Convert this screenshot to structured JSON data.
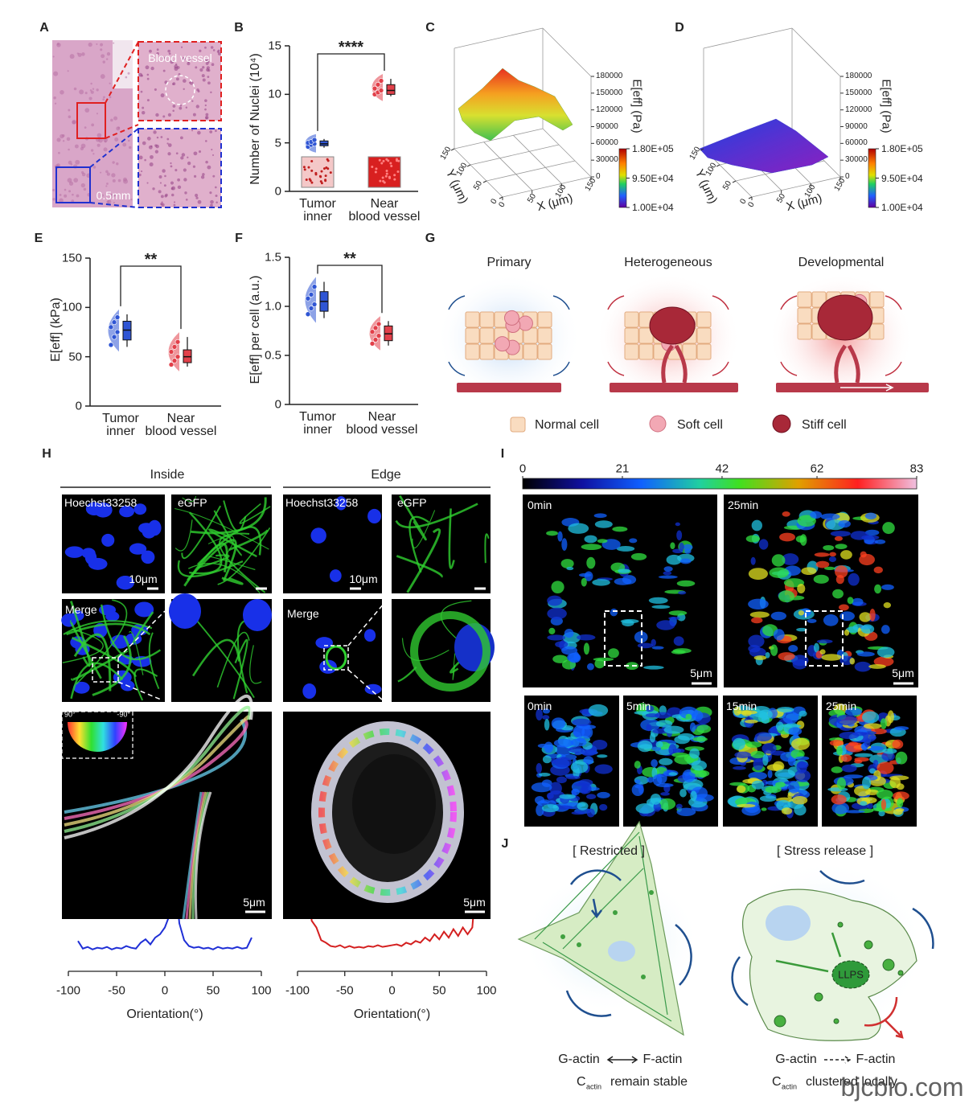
{
  "panels": {
    "A": {
      "label": "A",
      "vessel": "Blood vessel",
      "scale": "0.5mm"
    },
    "G": {
      "label": "G",
      "stages": [
        "Primary",
        "Heterogeneous",
        "Developmental"
      ],
      "legend": [
        "Normal cell",
        "Soft cell",
        "Stiff cell"
      ]
    },
    "H": {
      "label": "H",
      "groups": [
        "Inside",
        "Edge"
      ],
      "stains": [
        "Hoechst33258",
        "eGFP"
      ],
      "merge": "Merge",
      "scale_small": "10μm",
      "angle_max": "90°",
      "angle_min": "-90°",
      "scale_large": "5μm"
    },
    "I": {
      "label": "I",
      "times": [
        "0min",
        "5min",
        "15min",
        "25min"
      ],
      "scale": "5μm",
      "colorbar_lim": [
        0,
        83
      ],
      "colorbar_ticks": [
        0,
        21,
        42,
        62,
        83
      ]
    },
    "J": {
      "label": "J",
      "left": {
        "title": "[ Restricted ]",
        "from": "G-actin",
        "to": "F-actin",
        "c": "C",
        "sub": "actin",
        "state": "remain stable"
      },
      "right": {
        "title": "[ Stress release ]",
        "from": "G-actin",
        "to": "F-actin",
        "c": "C",
        "sub": "actin",
        "state": "clustered locally",
        "droplet": "LLPS"
      }
    }
  },
  "chart_data": [
    {
      "type": "box",
      "panel": "B",
      "ylabel": "Number of Nuclei (10⁴)",
      "categories": [
        "Tumor\ninner",
        "Near\nblood vessel"
      ],
      "colors": [
        "#2f55d4",
        "#e2404a"
      ],
      "ylim": [
        0,
        15
      ],
      "yticks": [
        0,
        5,
        10,
        15
      ],
      "significance": "****",
      "points": [
        [
          4.6,
          4.8,
          4.9,
          5.0,
          5.1,
          5.3
        ],
        [
          10.0,
          10.2,
          10.4,
          10.6,
          11.0,
          11.4
        ]
      ],
      "box": [
        {
          "min": 4.5,
          "q1": 4.7,
          "median": 4.9,
          "q3": 5.2,
          "max": 5.4
        },
        {
          "min": 9.8,
          "q1": 10.0,
          "median": 10.4,
          "q3": 11.0,
          "max": 11.6
        }
      ]
    },
    {
      "type": "surface",
      "panel": "C",
      "xlabel": "X (μm)",
      "ylabel": "Y (μm)",
      "zlabel": "E[eff] (Pa)",
      "xlim": [
        0,
        150
      ],
      "xticks": [
        0,
        50,
        100,
        150
      ],
      "ylim": [
        0,
        150
      ],
      "yticks": [
        0,
        50,
        100,
        150
      ],
      "zlim": [
        0,
        180000
      ],
      "zticks": [
        0,
        30000,
        60000,
        90000,
        120000,
        150000,
        180000
      ],
      "colorbar_lim": [
        10000,
        180000
      ],
      "colorbar_ticks": [
        {
          "value": 180000,
          "label": "1.80E+05"
        },
        {
          "value": 95000,
          "label": "9.50E+04"
        },
        {
          "value": 10000,
          "label": "1.00E+04"
        }
      ]
    },
    {
      "type": "surface",
      "panel": "D",
      "xlabel": "X (μm)",
      "ylabel": "Y (μm)",
      "zlabel": "E[eff] (Pa)",
      "xlim": [
        0,
        150
      ],
      "xticks": [
        0,
        50,
        100,
        150
      ],
      "ylim": [
        0,
        150
      ],
      "yticks": [
        0,
        50,
        100,
        150
      ],
      "zlim": [
        0,
        180000
      ],
      "zticks": [
        0,
        30000,
        60000,
        90000,
        120000,
        150000,
        180000
      ],
      "colorbar_lim": [
        10000,
        180000
      ],
      "colorbar_ticks": [
        {
          "value": 180000,
          "label": "1.80E+05"
        },
        {
          "value": 95000,
          "label": "9.50E+04"
        },
        {
          "value": 10000,
          "label": "1.00E+04"
        }
      ]
    },
    {
      "type": "box",
      "panel": "E",
      "ylabel": "E[eff] (kPa)",
      "categories": [
        "Tumor\ninner",
        "Near\nblood vessel"
      ],
      "colors": [
        "#2f55d4",
        "#e2404a"
      ],
      "ylim": [
        0,
        150
      ],
      "yticks": [
        0,
        50,
        100,
        150
      ],
      "significance": "**",
      "points": [
        [
          62,
          70,
          75,
          80,
          85,
          90
        ],
        [
          42,
          46,
          50,
          55,
          60,
          65
        ]
      ],
      "box": [
        {
          "min": 60,
          "q1": 67,
          "median": 77,
          "q3": 86,
          "max": 93
        },
        {
          "min": 40,
          "q1": 44,
          "median": 50,
          "q3": 57,
          "max": 70
        }
      ]
    },
    {
      "type": "box",
      "panel": "F",
      "ylabel": "E[eff] per cell (a.u.)",
      "categories": [
        "Tumor\ninner",
        "Near\nblood vessel"
      ],
      "colors": [
        "#2f55d4",
        "#e2404a"
      ],
      "ylim": [
        0,
        1.5
      ],
      "yticks": [
        0,
        0.5,
        {
          "value": 1,
          "label": "1.0"
        },
        1.5
      ],
      "significance": "**",
      "points": [
        [
          0.92,
          0.98,
          1.02,
          1.08,
          1.12,
          1.2
        ],
        [
          0.62,
          0.66,
          0.7,
          0.74,
          0.78,
          0.82
        ]
      ],
      "box": [
        {
          "min": 0.88,
          "q1": 0.95,
          "median": 1.05,
          "q3": 1.15,
          "max": 1.25
        },
        {
          "min": 0.6,
          "q1": 0.65,
          "median": 0.72,
          "q3": 0.8,
          "max": 0.85
        }
      ]
    },
    {
      "type": "line",
      "xlabel": "Orientation(°)",
      "xlim": [
        -100,
        100
      ],
      "xticks": [
        -100,
        -50,
        0,
        50,
        100
      ],
      "ylim": [
        0,
        1
      ],
      "x": [
        -90,
        -85,
        -80,
        -75,
        -70,
        -65,
        -60,
        -55,
        -50,
        -45,
        -40,
        -35,
        -30,
        -25,
        -20,
        -15,
        -10,
        -5,
        0,
        5,
        10,
        15,
        20,
        25,
        30,
        35,
        40,
        45,
        50,
        55,
        60,
        65,
        70,
        75,
        80,
        85,
        90
      ],
      "series": [
        {
          "color": "#1f2fd6",
          "values": [
            0.14,
            0.05,
            0.07,
            0.04,
            0.06,
            0.05,
            0.07,
            0.04,
            0.06,
            0.05,
            0.08,
            0.06,
            0.05,
            0.12,
            0.16,
            0.1,
            0.18,
            0.22,
            0.3,
            0.45,
            1.0,
            0.35,
            0.15,
            0.08,
            0.06,
            0.07,
            0.05,
            0.06,
            0.04,
            0.07,
            0.05,
            0.06,
            0.05,
            0.07,
            0.05,
            0.06,
            0.18
          ]
        }
      ]
    },
    {
      "type": "line",
      "xlabel": "Orientation(°)",
      "xlim": [
        -100,
        100
      ],
      "xticks": [
        -100,
        -50,
        0,
        50,
        100
      ],
      "ylim": [
        0,
        1
      ],
      "x": [
        -90,
        -85,
        -80,
        -75,
        -70,
        -65,
        -60,
        -55,
        -50,
        -45,
        -40,
        -35,
        -30,
        -25,
        -20,
        -15,
        -10,
        -5,
        0,
        5,
        10,
        15,
        20,
        25,
        30,
        35,
        40,
        45,
        50,
        55,
        60,
        65,
        70,
        75,
        80,
        85,
        90
      ],
      "series": [
        {
          "color": "#d42020",
          "values": [
            1.0,
            0.38,
            0.3,
            0.15,
            0.12,
            0.08,
            0.07,
            0.09,
            0.06,
            0.08,
            0.06,
            0.07,
            0.06,
            0.08,
            0.07,
            0.09,
            0.07,
            0.08,
            0.09,
            0.1,
            0.08,
            0.12,
            0.1,
            0.14,
            0.12,
            0.18,
            0.14,
            0.22,
            0.16,
            0.25,
            0.18,
            0.28,
            0.2,
            0.3,
            0.22,
            0.3,
            1.0
          ]
        }
      ]
    }
  ],
  "watermark": "bjcbio.com"
}
